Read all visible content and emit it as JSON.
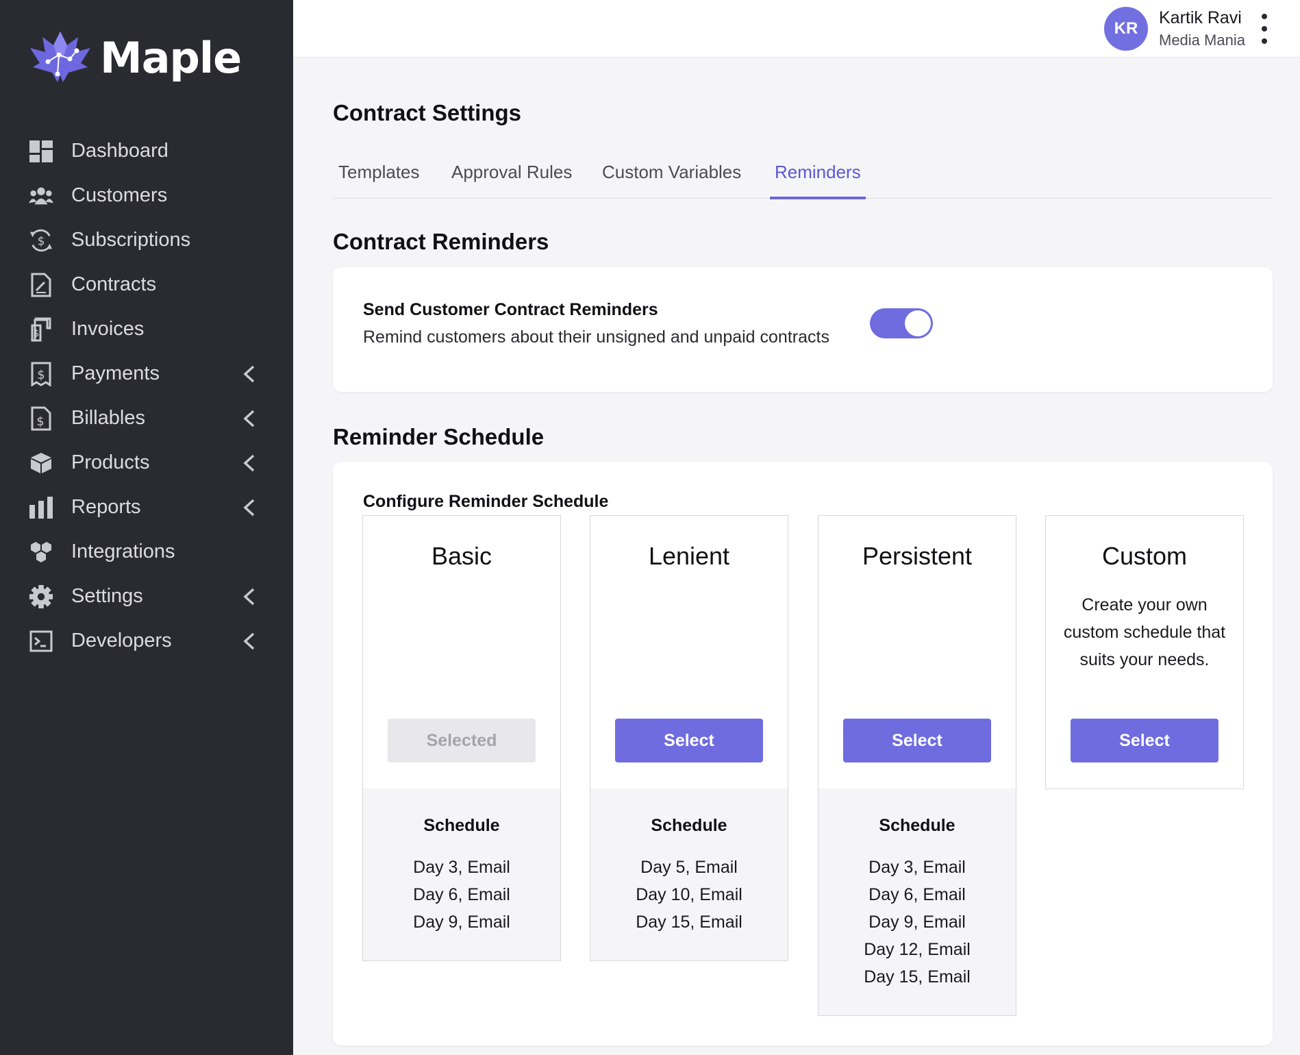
{
  "brand": {
    "name": "Maple"
  },
  "sidebar": {
    "items": [
      {
        "label": "Dashboard",
        "icon": "dashboard-icon",
        "expandable": false
      },
      {
        "label": "Customers",
        "icon": "users-icon",
        "expandable": false
      },
      {
        "label": "Subscriptions",
        "icon": "subscription-icon",
        "expandable": false
      },
      {
        "label": "Contracts",
        "icon": "contract-icon",
        "expandable": false
      },
      {
        "label": "Invoices",
        "icon": "invoice-icon",
        "expandable": false
      },
      {
        "label": "Payments",
        "icon": "payment-icon",
        "expandable": true
      },
      {
        "label": "Billables",
        "icon": "billable-icon",
        "expandable": true
      },
      {
        "label": "Products",
        "icon": "box-icon",
        "expandable": true
      },
      {
        "label": "Reports",
        "icon": "bar-chart-icon",
        "expandable": true
      },
      {
        "label": "Integrations",
        "icon": "integrations-icon",
        "expandable": false
      },
      {
        "label": "Settings",
        "icon": "gear-icon",
        "expandable": true
      },
      {
        "label": "Developers",
        "icon": "terminal-icon",
        "expandable": true
      }
    ]
  },
  "user": {
    "initials": "KR",
    "name": "Kartik Ravi",
    "org": "Media Mania"
  },
  "page": {
    "title": "Contract Settings",
    "tabs": [
      {
        "label": "Templates",
        "active": false
      },
      {
        "label": "Approval Rules",
        "active": false
      },
      {
        "label": "Custom Variables",
        "active": false
      },
      {
        "label": "Reminders",
        "active": true
      }
    ]
  },
  "reminders": {
    "section_title": "Contract Reminders",
    "toggle_title": "Send Customer Contract Reminders",
    "toggle_description": "Remind customers about their unsigned and unpaid contracts",
    "toggle_on": true
  },
  "schedule": {
    "section_title": "Reminder Schedule",
    "config_label": "Configure Reminder Schedule",
    "schedule_heading": "Schedule",
    "plans": [
      {
        "name": "Basic",
        "description": "",
        "button": "Selected",
        "selected": true,
        "schedule": [
          "Day 3, Email",
          "Day 6, Email",
          "Day 9, Email"
        ]
      },
      {
        "name": "Lenient",
        "description": "",
        "button": "Select",
        "selected": false,
        "schedule": [
          "Day 5, Email",
          "Day 10, Email",
          "Day 15, Email"
        ]
      },
      {
        "name": "Persistent",
        "description": "",
        "button": "Select",
        "selected": false,
        "schedule": [
          "Day 3, Email",
          "Day 6, Email",
          "Day 9, Email",
          "Day 12, Email",
          "Day 15, Email"
        ]
      },
      {
        "name": "Custom",
        "description": "Create your own custom schedule that suits your needs.",
        "button": "Select",
        "selected": false,
        "schedule": []
      }
    ]
  },
  "colors": {
    "accent": "#6f6ce0",
    "sidebar_bg": "#2a2b30",
    "page_bg": "#f5f5f7"
  }
}
